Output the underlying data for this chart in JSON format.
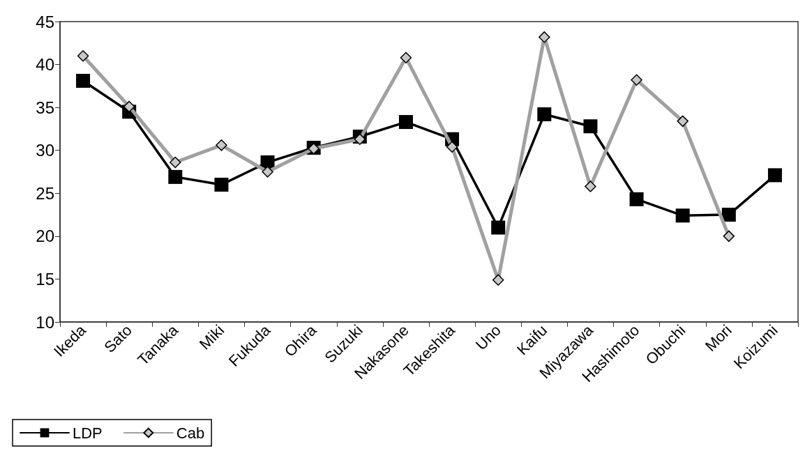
{
  "chart_data": {
    "type": "line",
    "categories": [
      "Ikeda",
      "Sato",
      "Tanaka",
      "Miki",
      "Fukuda",
      "Ohira",
      "Suzuki",
      "Nakasone",
      "Takeshita",
      "Uno",
      "Kaifu",
      "Miyazawa",
      "Hashimoto",
      "Obuchi",
      "Mori",
      "Koizumi"
    ],
    "series": [
      {
        "name": "LDP",
        "color": "#000000",
        "marker": "square",
        "values": [
          38.1,
          34.5,
          26.9,
          26.0,
          28.6,
          30.3,
          31.6,
          33.3,
          31.3,
          21.0,
          34.2,
          32.8,
          24.3,
          22.4,
          22.5,
          27.1
        ]
      },
      {
        "name": "Cab",
        "color": "#a0a0a0",
        "marker": "diamond",
        "values": [
          41.0,
          35.1,
          28.6,
          30.6,
          27.5,
          30.2,
          31.3,
          40.8,
          30.4,
          14.9,
          43.2,
          25.8,
          38.2,
          33.4,
          20.0,
          null
        ]
      }
    ],
    "ylim": [
      10,
      45
    ],
    "yticks": [
      10,
      15,
      20,
      25,
      30,
      35,
      40,
      45
    ],
    "grid": false,
    "legend": "bottom left",
    "line_style": "solid"
  }
}
